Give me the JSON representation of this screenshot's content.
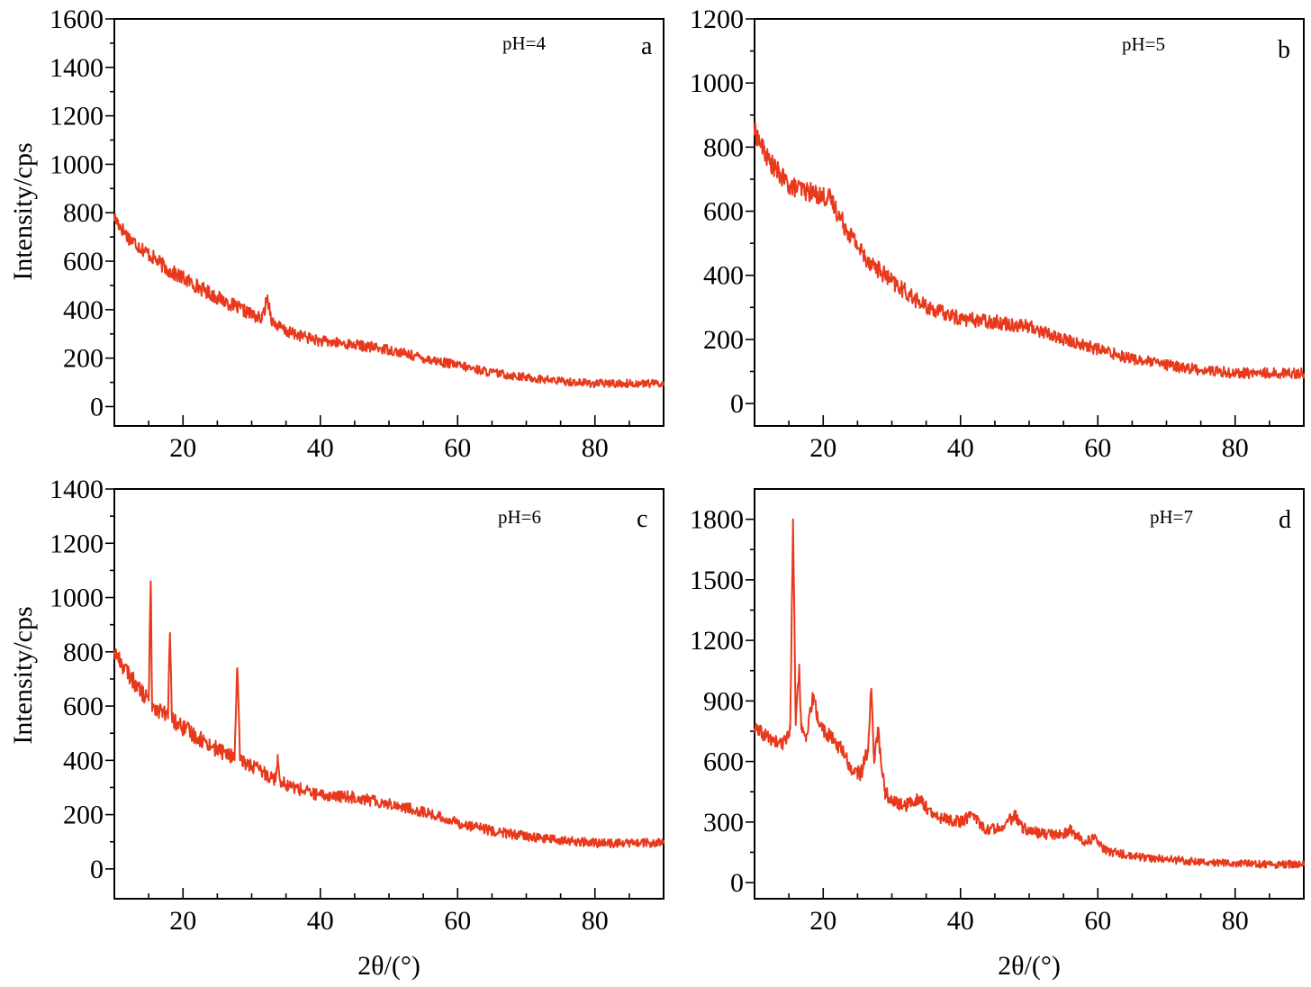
{
  "chart_data": [
    {
      "type": "line",
      "panel_label": "a",
      "annotation": "pH=4",
      "ylabel": "Intensity/cps",
      "xlabel": "",
      "xlim": [
        10,
        90
      ],
      "ylim": [
        -80,
        1600
      ],
      "xticks": [
        20,
        40,
        60,
        80
      ],
      "yticks": [
        0,
        200,
        400,
        600,
        800,
        1000,
        1200,
        1400,
        1600
      ],
      "noise": 22,
      "series": [
        {
          "x": [
            10,
            12,
            15,
            18,
            20,
            25,
            30,
            31.5,
            32.3,
            33,
            35,
            40,
            45,
            50,
            55,
            60,
            65,
            70,
            75,
            80,
            85,
            90
          ],
          "y": [
            780,
            700,
            630,
            560,
            530,
            450,
            380,
            360,
            450,
            350,
            310,
            270,
            255,
            235,
            200,
            170,
            140,
            120,
            105,
            95,
            95,
            95
          ]
        }
      ]
    },
    {
      "type": "line",
      "panel_label": "b",
      "annotation": "pH=5",
      "ylabel": "",
      "xlabel": "",
      "xlim": [
        10,
        90
      ],
      "ylim": [
        -70,
        1200
      ],
      "xticks": [
        20,
        40,
        60,
        80
      ],
      "yticks": [
        0,
        200,
        400,
        600,
        800,
        1000,
        1200
      ],
      "noise": 22,
      "series": [
        {
          "x": [
            10,
            12,
            15,
            18,
            21,
            23,
            26,
            30,
            35,
            40,
            45,
            50,
            55,
            60,
            65,
            70,
            75,
            80,
            85,
            90
          ],
          "y": [
            850,
            760,
            680,
            660,
            640,
            560,
            460,
            380,
            300,
            265,
            255,
            240,
            200,
            170,
            140,
            120,
            105,
            95,
            95,
            95
          ]
        }
      ]
    },
    {
      "type": "line",
      "panel_label": "c",
      "annotation": "pH=6",
      "ylabel": "Intensity/cps",
      "xlabel": "2θ/(°)",
      "xlim": [
        10,
        90
      ],
      "ylim": [
        -110,
        1400
      ],
      "xticks": [
        20,
        40,
        60,
        80
      ],
      "yticks": [
        0,
        200,
        400,
        600,
        800,
        1000,
        1200,
        1400
      ],
      "noise": 22,
      "series": [
        {
          "x": [
            10,
            12,
            14,
            15,
            15.3,
            15.5,
            15.8,
            17.8,
            18.1,
            18.4,
            20,
            25,
            27.5,
            27.9,
            28.3,
            30,
            33.5,
            33.8,
            34.1,
            35,
            40,
            45,
            50,
            55,
            60,
            65,
            70,
            75,
            80,
            85,
            90
          ],
          "y": [
            800,
            720,
            650,
            620,
            1060,
            610,
            600,
            560,
            870,
            550,
            520,
            440,
            410,
            740,
            400,
            380,
            330,
            420,
            330,
            310,
            270,
            265,
            240,
            210,
            170,
            140,
            120,
            105,
            95,
            95,
            95
          ]
        }
      ]
    },
    {
      "type": "line",
      "panel_label": "d",
      "annotation": "pH=7",
      "ylabel": "",
      "xlabel": "2θ/(°)",
      "xlim": [
        10,
        90
      ],
      "ylim": [
        -80,
        1950
      ],
      "xticks": [
        20,
        40,
        60,
        80
      ],
      "yticks": [
        0,
        300,
        600,
        900,
        1200,
        1500,
        1800
      ],
      "noise": 26,
      "series": [
        {
          "x": [
            10,
            12,
            14,
            15.2,
            15.6,
            16,
            16.5,
            16.8,
            17.5,
            18.5,
            19.5,
            21,
            23,
            24,
            25.5,
            26.5,
            27,
            27.4,
            28,
            28.4,
            29,
            30,
            32,
            34,
            36,
            40,
            42,
            43,
            44,
            46,
            48,
            49,
            52,
            55,
            56,
            58,
            59.5,
            61,
            65,
            70,
            75,
            80,
            85,
            90
          ],
          "y": [
            760,
            720,
            680,
            760,
            1800,
            780,
            1080,
            760,
            700,
            920,
            780,
            720,
            650,
            560,
            540,
            660,
            960,
            620,
            760,
            600,
            450,
            400,
            380,
            420,
            330,
            300,
            340,
            280,
            260,
            280,
            330,
            270,
            240,
            240,
            260,
            200,
            220,
            160,
            130,
            115,
            105,
            95,
            90,
            90
          ]
        }
      ]
    }
  ]
}
